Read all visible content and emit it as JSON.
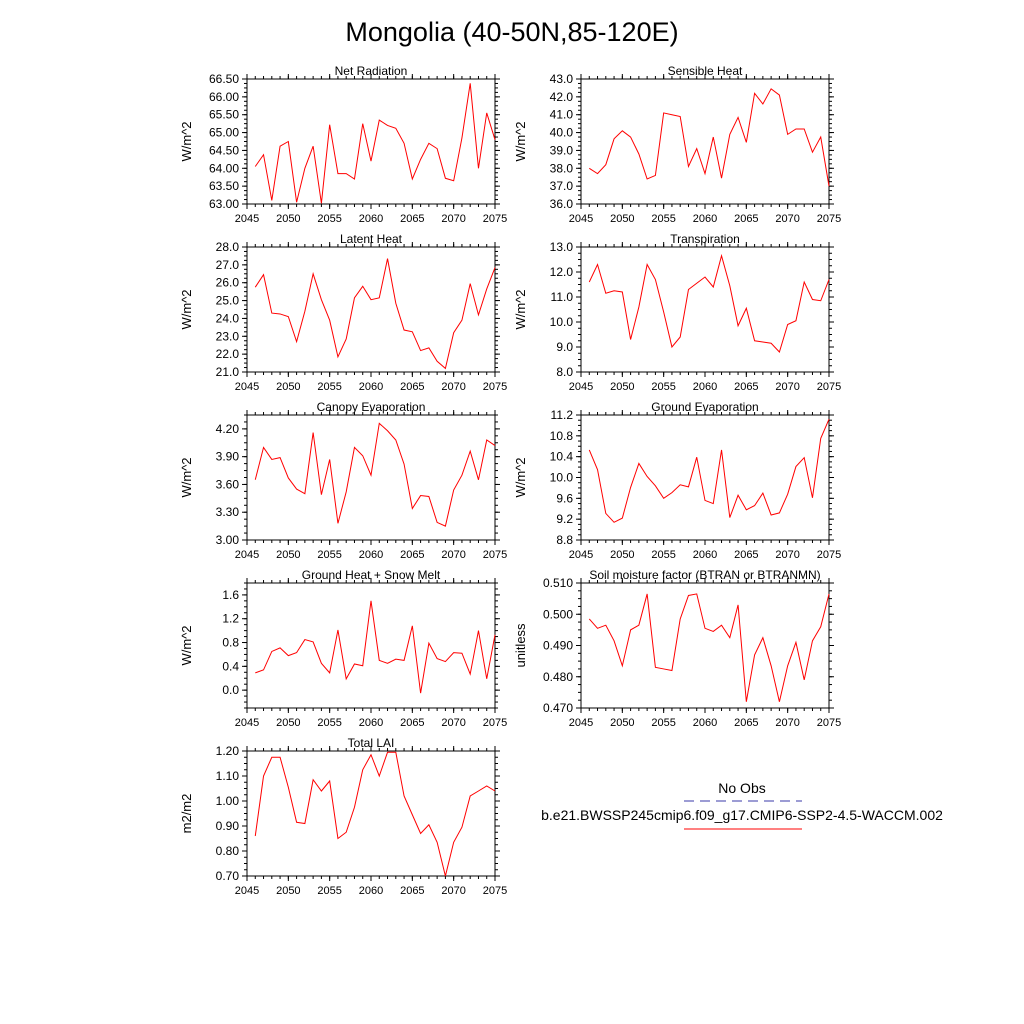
{
  "page_title": "Mongolia (40-50N,85-120E)",
  "legend": {
    "obs_label": "No Obs",
    "model_label": "b.e21.BWSSP245cmip6.f09_g17.CMIP6-SSP2-4.5-WACCM.002",
    "obs_color": "#3a3aa8",
    "model_color": "#ff0000"
  },
  "chart_data": [
    {
      "type": "line",
      "title": "Net Radiation",
      "ylabel": "W/m^2",
      "xlim": [
        2045,
        2075
      ],
      "ylim": [
        63.0,
        66.5
      ],
      "xticks": [
        2045,
        2050,
        2055,
        2060,
        2065,
        2070,
        2075
      ],
      "yticks": [
        "63.00",
        "63.50",
        "64.00",
        "64.50",
        "65.00",
        "65.50",
        "66.00",
        "66.50"
      ],
      "x": [
        2046,
        2047,
        2048,
        2049,
        2050,
        2051,
        2052,
        2053,
        2054,
        2055,
        2056,
        2057,
        2058,
        2059,
        2060,
        2061,
        2062,
        2063,
        2064,
        2065,
        2066,
        2067,
        2068,
        2069,
        2070,
        2071,
        2072,
        2073,
        2074,
        2075
      ],
      "series": [
        {
          "values": [
            64.05,
            64.38,
            63.1,
            64.62,
            64.75,
            63.05,
            64.0,
            64.62,
            63.02,
            65.22,
            63.85,
            63.85,
            63.7,
            65.25,
            64.2,
            65.35,
            65.2,
            65.12,
            64.7,
            63.7,
            64.25,
            64.7,
            64.55,
            63.72,
            63.65,
            64.85,
            66.38,
            64.0,
            65.55,
            64.8
          ]
        }
      ]
    },
    {
      "type": "line",
      "title": "Sensible Heat",
      "ylabel": "W/m^2",
      "xlim": [
        2045,
        2075
      ],
      "ylim": [
        36.0,
        43.0
      ],
      "xticks": [
        2045,
        2050,
        2055,
        2060,
        2065,
        2070,
        2075
      ],
      "yticks": [
        "36.0",
        "37.0",
        "38.0",
        "39.0",
        "40.0",
        "41.0",
        "42.0",
        "43.0"
      ],
      "x": [
        2046,
        2047,
        2048,
        2049,
        2050,
        2051,
        2052,
        2053,
        2054,
        2055,
        2056,
        2057,
        2058,
        2059,
        2060,
        2061,
        2062,
        2063,
        2064,
        2065,
        2066,
        2067,
        2068,
        2069,
        2070,
        2071,
        2072,
        2073,
        2074,
        2075
      ],
      "series": [
        {
          "values": [
            38.0,
            37.7,
            38.2,
            39.65,
            40.1,
            39.75,
            38.8,
            37.4,
            37.6,
            41.1,
            41.0,
            40.9,
            38.1,
            39.1,
            37.7,
            39.75,
            37.45,
            39.9,
            40.85,
            39.45,
            42.2,
            41.6,
            42.45,
            42.1,
            39.9,
            40.2,
            40.2,
            38.9,
            39.75,
            37.0
          ]
        }
      ]
    },
    {
      "type": "line",
      "title": "Latent Heat",
      "ylabel": "W/m^2",
      "xlim": [
        2045,
        2075
      ],
      "ylim": [
        21.0,
        28.0
      ],
      "xticks": [
        2045,
        2050,
        2055,
        2060,
        2065,
        2070,
        2075
      ],
      "yticks": [
        "21.0",
        "22.0",
        "23.0",
        "24.0",
        "25.0",
        "26.0",
        "27.0",
        "28.0"
      ],
      "x": [
        2046,
        2047,
        2048,
        2049,
        2050,
        2051,
        2052,
        2053,
        2054,
        2055,
        2056,
        2057,
        2058,
        2059,
        2060,
        2061,
        2062,
        2063,
        2064,
        2065,
        2066,
        2067,
        2068,
        2069,
        2070,
        2071,
        2072,
        2073,
        2074,
        2075
      ],
      "series": [
        {
          "values": [
            25.75,
            26.45,
            24.3,
            24.25,
            24.1,
            22.7,
            24.4,
            26.5,
            25.05,
            23.9,
            21.85,
            22.85,
            25.15,
            25.8,
            25.05,
            25.15,
            27.35,
            24.85,
            23.35,
            23.25,
            22.2,
            22.35,
            21.6,
            21.2,
            23.2,
            23.9,
            25.95,
            24.2,
            25.65,
            26.85
          ]
        }
      ]
    },
    {
      "type": "line",
      "title": "Transpiration",
      "ylabel": "W/m^2",
      "xlim": [
        2045,
        2075
      ],
      "ylim": [
        8.0,
        13.0
      ],
      "xticks": [
        2045,
        2050,
        2055,
        2060,
        2065,
        2070,
        2075
      ],
      "yticks": [
        "8.0",
        "9.0",
        "10.0",
        "11.0",
        "12.0",
        "13.0"
      ],
      "x": [
        2046,
        2047,
        2048,
        2049,
        2050,
        2051,
        2052,
        2053,
        2054,
        2055,
        2056,
        2057,
        2058,
        2059,
        2060,
        2061,
        2062,
        2063,
        2064,
        2065,
        2066,
        2067,
        2068,
        2069,
        2070,
        2071,
        2072,
        2073,
        2074,
        2075
      ],
      "series": [
        {
          "values": [
            11.6,
            12.3,
            11.15,
            11.25,
            11.2,
            9.3,
            10.6,
            12.3,
            11.7,
            10.4,
            9.0,
            9.4,
            11.3,
            11.55,
            11.8,
            11.4,
            12.65,
            11.45,
            9.85,
            10.55,
            9.25,
            9.2,
            9.15,
            8.8,
            9.9,
            10.05,
            11.6,
            10.9,
            10.85,
            11.7
          ]
        }
      ]
    },
    {
      "type": "line",
      "title": "Canopy Evaporation",
      "ylabel": "W/m^2",
      "xlim": [
        2045,
        2075
      ],
      "ylim": [
        3.0,
        4.35
      ],
      "xticks": [
        2045,
        2050,
        2055,
        2060,
        2065,
        2070,
        2075
      ],
      "yticks": [
        "3.00",
        "3.30",
        "3.60",
        "3.90",
        "4.20"
      ],
      "x": [
        2046,
        2047,
        2048,
        2049,
        2050,
        2051,
        2052,
        2053,
        2054,
        2055,
        2056,
        2057,
        2058,
        2059,
        2060,
        2061,
        2062,
        2063,
        2064,
        2065,
        2066,
        2067,
        2068,
        2069,
        2070,
        2071,
        2072,
        2073,
        2074,
        2075
      ],
      "series": [
        {
          "values": [
            3.65,
            4.0,
            3.87,
            3.89,
            3.67,
            3.55,
            3.5,
            4.16,
            3.49,
            3.87,
            3.18,
            3.52,
            4.0,
            3.91,
            3.7,
            4.26,
            4.18,
            4.08,
            3.82,
            3.34,
            3.48,
            3.47,
            3.19,
            3.15,
            3.54,
            3.7,
            3.96,
            3.65,
            4.08,
            4.02
          ]
        }
      ]
    },
    {
      "type": "line",
      "title": "Ground Evaporation",
      "ylabel": "W/m^2",
      "xlim": [
        2045,
        2075
      ],
      "ylim": [
        8.8,
        11.2
      ],
      "xticks": [
        2045,
        2050,
        2055,
        2060,
        2065,
        2070,
        2075
      ],
      "yticks": [
        "8.8",
        "9.2",
        "9.6",
        "10.0",
        "10.4",
        "10.8",
        "11.2"
      ],
      "x": [
        2046,
        2047,
        2048,
        2049,
        2050,
        2051,
        2052,
        2053,
        2054,
        2055,
        2056,
        2057,
        2058,
        2059,
        2060,
        2061,
        2062,
        2063,
        2064,
        2065,
        2066,
        2067,
        2068,
        2069,
        2070,
        2071,
        2072,
        2073,
        2074,
        2075
      ],
      "series": [
        {
          "values": [
            10.53,
            10.15,
            9.31,
            9.14,
            9.22,
            9.81,
            10.27,
            10.02,
            9.84,
            9.6,
            9.71,
            9.86,
            9.82,
            10.39,
            9.56,
            9.5,
            10.53,
            9.23,
            9.66,
            9.38,
            9.46,
            9.7,
            9.28,
            9.32,
            9.68,
            10.21,
            10.38,
            9.61,
            10.75,
            11.12
          ]
        }
      ]
    },
    {
      "type": "line",
      "title": "Ground Heat + Snow Melt",
      "ylabel": "W/m^2",
      "xlim": [
        2045,
        2075
      ],
      "ylim": [
        -0.3,
        1.8
      ],
      "xticks": [
        2045,
        2050,
        2055,
        2060,
        2065,
        2070,
        2075
      ],
      "yticks": [
        "0.0",
        "0.4",
        "0.8",
        "1.2",
        "1.6"
      ],
      "x": [
        2046,
        2047,
        2048,
        2049,
        2050,
        2051,
        2052,
        2053,
        2054,
        2055,
        2056,
        2057,
        2058,
        2059,
        2060,
        2061,
        2062,
        2063,
        2064,
        2065,
        2066,
        2067,
        2068,
        2069,
        2070,
        2071,
        2072,
        2073,
        2074,
        2075
      ],
      "series": [
        {
          "values": [
            0.29,
            0.34,
            0.65,
            0.71,
            0.58,
            0.63,
            0.85,
            0.81,
            0.45,
            0.29,
            1.01,
            0.19,
            0.44,
            0.41,
            1.5,
            0.5,
            0.45,
            0.52,
            0.5,
            1.08,
            -0.05,
            0.79,
            0.53,
            0.48,
            0.63,
            0.62,
            0.27,
            1.0,
            0.19,
            0.93
          ]
        }
      ]
    },
    {
      "type": "line",
      "title": "Soil moisture factor (BTRAN or BTRANMN)",
      "ylabel": "unitless",
      "xlim": [
        2045,
        2075
      ],
      "ylim": [
        0.47,
        0.51
      ],
      "xticks": [
        2045,
        2050,
        2055,
        2060,
        2065,
        2070,
        2075
      ],
      "yticks": [
        "0.470",
        "0.480",
        "0.490",
        "0.500",
        "0.510"
      ],
      "x": [
        2046,
        2047,
        2048,
        2049,
        2050,
        2051,
        2052,
        2053,
        2054,
        2055,
        2056,
        2057,
        2058,
        2059,
        2060,
        2061,
        2062,
        2063,
        2064,
        2065,
        2066,
        2067,
        2068,
        2069,
        2070,
        2071,
        2072,
        2073,
        2074,
        2075
      ],
      "series": [
        {
          "values": [
            0.4985,
            0.4955,
            0.4965,
            0.4915,
            0.4835,
            0.495,
            0.4965,
            0.5065,
            0.483,
            0.4825,
            0.482,
            0.4985,
            0.506,
            0.5065,
            0.4955,
            0.4945,
            0.4965,
            0.4925,
            0.503,
            0.472,
            0.487,
            0.4925,
            0.4835,
            0.472,
            0.4835,
            0.491,
            0.479,
            0.4915,
            0.496,
            0.5065
          ]
        }
      ]
    },
    {
      "type": "line",
      "title": "Total LAI",
      "ylabel": "m2/m2",
      "xlim": [
        2045,
        2075
      ],
      "ylim": [
        0.7,
        1.2
      ],
      "xticks": [
        2045,
        2050,
        2055,
        2060,
        2065,
        2070,
        2075
      ],
      "yticks": [
        "0.70",
        "0.80",
        "0.90",
        "1.00",
        "1.10",
        "1.20"
      ],
      "x": [
        2046,
        2047,
        2048,
        2049,
        2050,
        2051,
        2052,
        2053,
        2054,
        2055,
        2056,
        2057,
        2058,
        2059,
        2060,
        2061,
        2062,
        2063,
        2064,
        2065,
        2066,
        2067,
        2068,
        2069,
        2070,
        2071,
        2072,
        2073,
        2074,
        2075
      ],
      "series": [
        {
          "values": [
            0.86,
            1.1,
            1.175,
            1.175,
            1.055,
            0.915,
            0.91,
            1.085,
            1.04,
            1.08,
            0.85,
            0.875,
            0.975,
            1.125,
            1.185,
            1.1,
            1.195,
            1.195,
            1.02,
            0.945,
            0.87,
            0.905,
            0.835,
            0.7,
            0.835,
            0.895,
            1.02,
            1.04,
            1.06,
            1.04
          ]
        }
      ]
    }
  ]
}
